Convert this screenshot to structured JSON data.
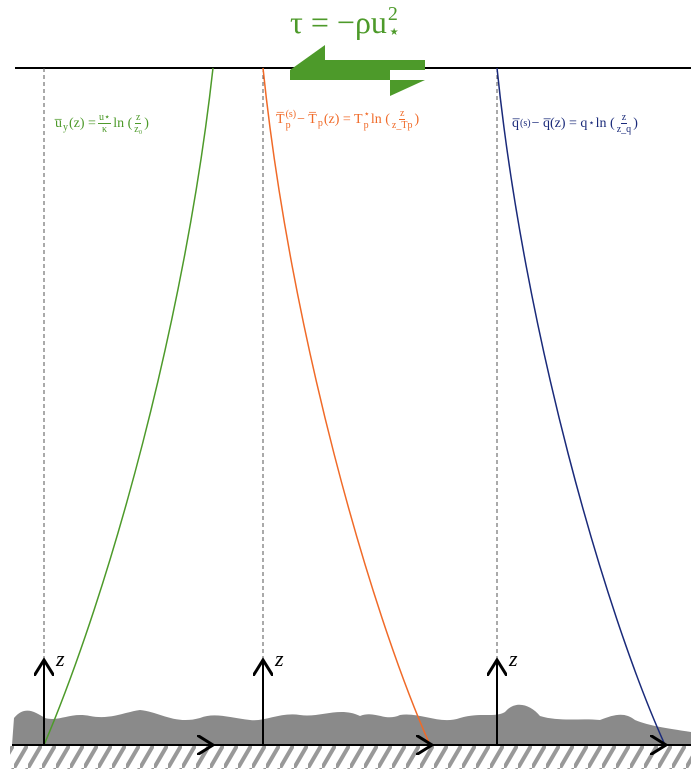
{
  "header": {
    "stress": [
      {
        "text": "τ = −ρu"
      },
      {
        "sup": "2",
        "sub": "⋆"
      }
    ]
  },
  "profiles": [
    {
      "formula": [
        {
          "text": "u̅"
        },
        {
          "sub": "y"
        },
        {
          "text": "(z) = "
        },
        {
          "num": "u⋆",
          "den": "κ"
        },
        {
          "text": " ln ("
        },
        {
          "num": "z",
          "den": "z₀"
        },
        {
          "text": ")"
        }
      ],
      "axis_label": "z"
    },
    {
      "formula": [
        {
          "text": "T̅"
        },
        {
          "sup": "(s)",
          "sub": "p"
        },
        {
          "text": " − T̅"
        },
        {
          "sub": "p"
        },
        {
          "text": "(z) = T"
        },
        {
          "sup": "⋆",
          "sub": "p"
        },
        {
          "text": " ln ("
        },
        {
          "num": "z",
          "den": "z_Tp"
        },
        {
          "text": ")"
        }
      ],
      "axis_label": "z"
    },
    {
      "formula": [
        {
          "text": "q̅"
        },
        {
          "sup": "(s)"
        },
        {
          "text": " − q̅(z) = q"
        },
        {
          "sup": "⋆"
        },
        {
          "text": " ln ("
        },
        {
          "num": "z",
          "den": "z_q"
        },
        {
          "text": ")"
        }
      ],
      "axis_label": "z"
    }
  ]
}
